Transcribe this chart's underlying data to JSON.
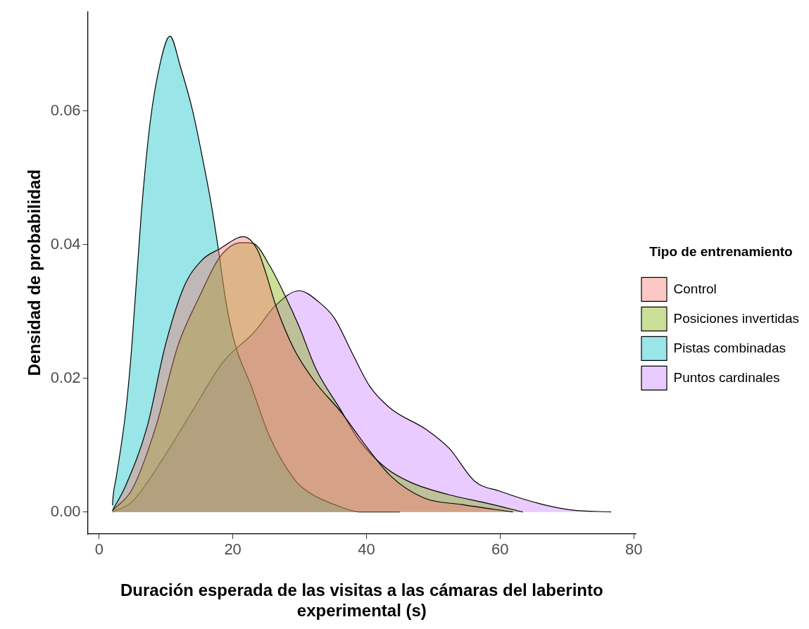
{
  "chart_data": {
    "type": "area",
    "xlabel": "Duración esperada de las visitas a las cámaras del laberinto experimental (s)",
    "ylabel": "Densidad de probabilidad",
    "legend_title": "Tipo de entrenamiento",
    "legend": "right",
    "grid": false,
    "xlim": [
      -1.7,
      80.3
    ],
    "xticks": [
      0,
      20,
      40,
      60,
      80
    ],
    "ylim": [
      -0.0033,
      0.0749
    ],
    "yticks": [
      {
        "value": 0,
        "label": "0.00"
      },
      {
        "value": 0.02,
        "label": "0.02"
      },
      {
        "value": 0.04,
        "label": "0.04"
      },
      {
        "value": 0.06,
        "label": "0.06"
      }
    ],
    "series": [
      {
        "name": "Control",
        "color": "#f8766d",
        "x": [
          2,
          4,
          7.2,
          9.9,
          12.7,
          15.4,
          18.1,
          21.6,
          23.7,
          24.9,
          26.4,
          29.1,
          32.2,
          36.4,
          40.2,
          43.6,
          48.6,
          54.3,
          61.9
        ],
        "values": [
          0.0002,
          0.004,
          0.0128,
          0.0249,
          0.0337,
          0.0377,
          0.0394,
          0.0412,
          0.0392,
          0.0359,
          0.031,
          0.0245,
          0.0196,
          0.0147,
          0.0095,
          0.0054,
          0.0021,
          0.0011,
          0
        ]
      },
      {
        "name": "Posiciones invertidas",
        "color": "#7cae00",
        "x": [
          2,
          5,
          8.5,
          11.8,
          15,
          18.1,
          21.3,
          23,
          25.6,
          27.9,
          29.9,
          32.5,
          36,
          39,
          42.9,
          46.7,
          52.3,
          58.1,
          63.4
        ],
        "values": [
          0.0002,
          0.0035,
          0.0128,
          0.0249,
          0.0322,
          0.0382,
          0.0403,
          0.0402,
          0.0367,
          0.0322,
          0.0278,
          0.0213,
          0.0155,
          0.0106,
          0.0066,
          0.0044,
          0.0026,
          0.0013,
          0
        ]
      },
      {
        "name": "Pistas combinadas",
        "color": "#00bfc4",
        "x": [
          2,
          2.1,
          2.6,
          4,
          4.9,
          6.3,
          7.6,
          9.2,
          10.6,
          12.2,
          14,
          15.4,
          16.7,
          17.8,
          19,
          20.4,
          22.7,
          25.5,
          29.2,
          31,
          36,
          39,
          45
        ],
        "values": [
          0.001,
          0.0024,
          0.0054,
          0.0152,
          0.0249,
          0.0445,
          0.058,
          0.0674,
          0.0712,
          0.0665,
          0.06,
          0.0533,
          0.0465,
          0.0396,
          0.0313,
          0.0249,
          0.019,
          0.0113,
          0.0049,
          0.0032,
          0.0008,
          0,
          0
        ]
      },
      {
        "name": "Puntos cardinales",
        "color": "#c77cff",
        "x": [
          2,
          4.9,
          9.5,
          14,
          18.6,
          23.2,
          26.4,
          29.9,
          32.9,
          35.2,
          37.9,
          40.5,
          43.6,
          49,
          52.4,
          56.2,
          60,
          65.7,
          70.7,
          76.6
        ],
        "values": [
          0,
          0.0015,
          0.0079,
          0.0152,
          0.0225,
          0.0269,
          0.0309,
          0.0331,
          0.0314,
          0.029,
          0.0237,
          0.0188,
          0.0155,
          0.0123,
          0.0095,
          0.0046,
          0.0031,
          0.0013,
          0.0003,
          0
        ]
      }
    ]
  }
}
